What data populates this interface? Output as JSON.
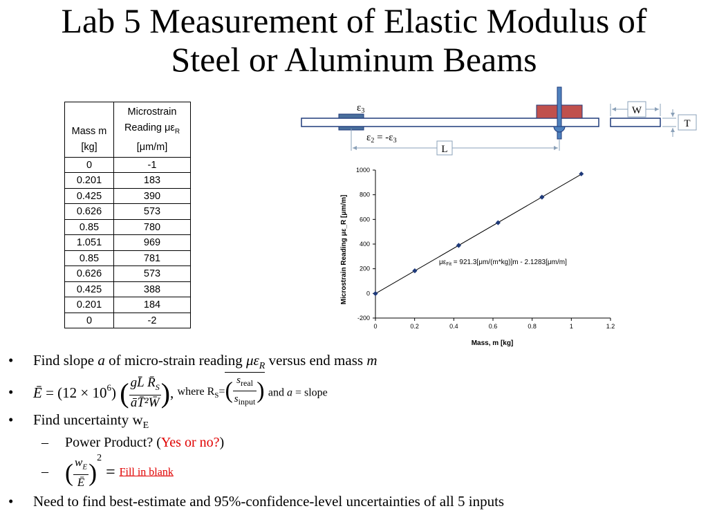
{
  "title": {
    "line1": "Lab 5 Measurement of Elastic Modulus of",
    "line2": "Steel or Aluminum Beams"
  },
  "table": {
    "header_mass_line1": "Mass m",
    "header_mass_line2": "[kg]",
    "header_strain_line1": "Microstrain",
    "header_strain_line2": "Reading με",
    "header_strain_sub": "R",
    "header_strain_line3": "[μm/m]",
    "rows": [
      [
        "0",
        "-1"
      ],
      [
        "0.201",
        "183"
      ],
      [
        "0.425",
        "390"
      ],
      [
        "0.626",
        "573"
      ],
      [
        "0.85",
        "780"
      ],
      [
        "1.051",
        "969"
      ],
      [
        "0.85",
        "781"
      ],
      [
        "0.626",
        "573"
      ],
      [
        "0.425",
        "388"
      ],
      [
        "0.201",
        "184"
      ],
      [
        "0",
        "-2"
      ]
    ]
  },
  "diagram": {
    "eps3": "ε",
    "eps3_sub": "3",
    "eps2_eq": "ε",
    "eps2_sub": "2",
    "eps2_rhs": " = -ε",
    "eps2_rhs_sub": "3",
    "L": "L",
    "W": "W",
    "T": "T",
    "colors": {
      "beam_fill": "#ffffff",
      "clamp": "#4a6f9c",
      "mass": "#c0504d",
      "rod": "#4f81bd"
    }
  },
  "chart_data": {
    "type": "scatter",
    "xlabel": "Mass, m [kg]",
    "ylabel": "Microstrain Reading με_R [μm/m]",
    "xlim": [
      0,
      1.2
    ],
    "ylim": [
      -200,
      1000
    ],
    "xticks": [
      "0",
      "0.2",
      "0.4",
      "0.6",
      "0.8",
      "1",
      "1.2"
    ],
    "yticks": [
      "-200",
      "0",
      "200",
      "400",
      "600",
      "800",
      "1000"
    ],
    "points": [
      [
        0,
        -1
      ],
      [
        0.201,
        183
      ],
      [
        0.425,
        390
      ],
      [
        0.626,
        573
      ],
      [
        0.85,
        780
      ],
      [
        1.051,
        969
      ],
      [
        0.85,
        781
      ],
      [
        0.626,
        573
      ],
      [
        0.425,
        388
      ],
      [
        0.201,
        184
      ],
      [
        0,
        -2
      ]
    ],
    "fit": {
      "slope": 921.3,
      "intercept": -2.1283
    },
    "annotation": "με",
    "annotation_sub": "Fit",
    "annotation_rest": " = 921.3[μm/(m*kg)]m - 2.1283[μm/m]",
    "grid": false,
    "marker_color": "#1f3a7a"
  },
  "bullets": {
    "dot": "•",
    "dash": "–",
    "b1_pre": "Find slope ",
    "b1_a": "a",
    "b1_mid": " of micro-strain reading ",
    "b1_mu": "με",
    "b1_sub": "R",
    "b1_post": " versus end mass ",
    "b1_m": "m",
    "b2_E": "Ē",
    "b2_eq": " = (12 × 10",
    "b2_exp": "6",
    "b2_close": ")",
    "b2_num": "gL̄ R̄",
    "b2_num_sub": "S",
    "b2_den": "āT̄²W̄",
    "b2_comma": ",",
    "b2_where": " where R",
    "b2_where_sub": "S",
    "b2_where_eq": "=",
    "b2_snum": "s",
    "b2_snum_sub": "real",
    "b2_sden": "s",
    "b2_sden_sub": "input",
    "b2_and": " and ",
    "b2_a": "a",
    "b2_slope": " = slope",
    "b3": "Find uncertainty w",
    "b3_sub": "E",
    "s1_pre": "Power Product? (",
    "s1_red": "Yes or no?",
    "s1_post": ")",
    "s2_wnum": "w",
    "s2_wnum_sub": "E",
    "s2_wden": "Ē",
    "s2_exp": "2",
    "s2_eq": " = ",
    "s2_fill": "Fill in blank",
    "b4": "Need to find best-estimate and 95%-confidence-level uncertainties of all 5 inputs"
  }
}
